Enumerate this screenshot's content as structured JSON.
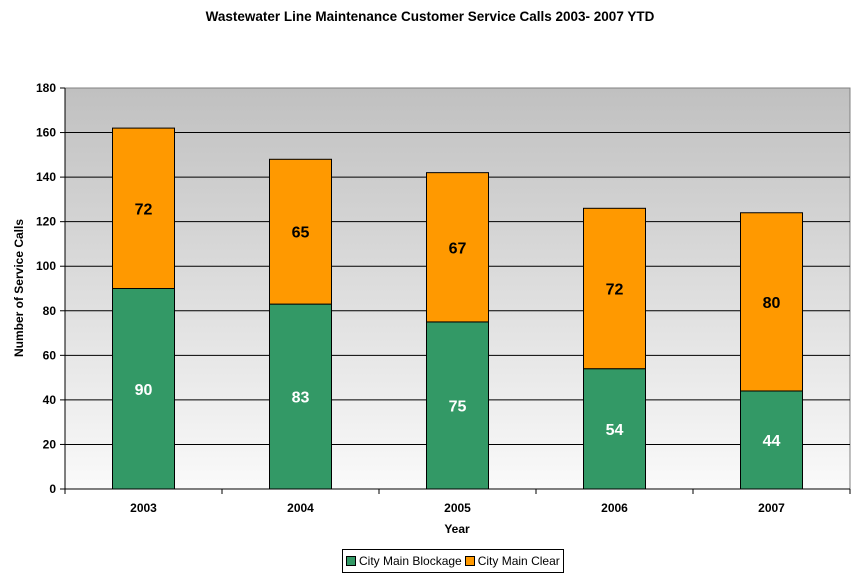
{
  "chart_data": {
    "type": "bar",
    "stacked": true,
    "title": "Wastewater Line Maintenance Customer Service Calls 2003- 2007 YTD",
    "xlabel": "Year",
    "ylabel": "Number of Service Calls",
    "categories": [
      "2003",
      "2004",
      "2005",
      "2006",
      "2007"
    ],
    "series": [
      {
        "name": "City Main Blockage",
        "color": "#339966",
        "label_color": "#ffffff",
        "values": [
          90,
          83,
          75,
          54,
          44
        ]
      },
      {
        "name": "City Main Clear",
        "color": "#ff9900",
        "label_color": "#000000",
        "values": [
          72,
          65,
          67,
          72,
          80
        ]
      }
    ],
    "ylim": [
      0,
      180
    ],
    "yticks": [
      "0",
      "20",
      "40",
      "60",
      "80",
      "100",
      "120",
      "140",
      "160",
      "180"
    ],
    "grid": true,
    "legend_position": "bottom"
  }
}
